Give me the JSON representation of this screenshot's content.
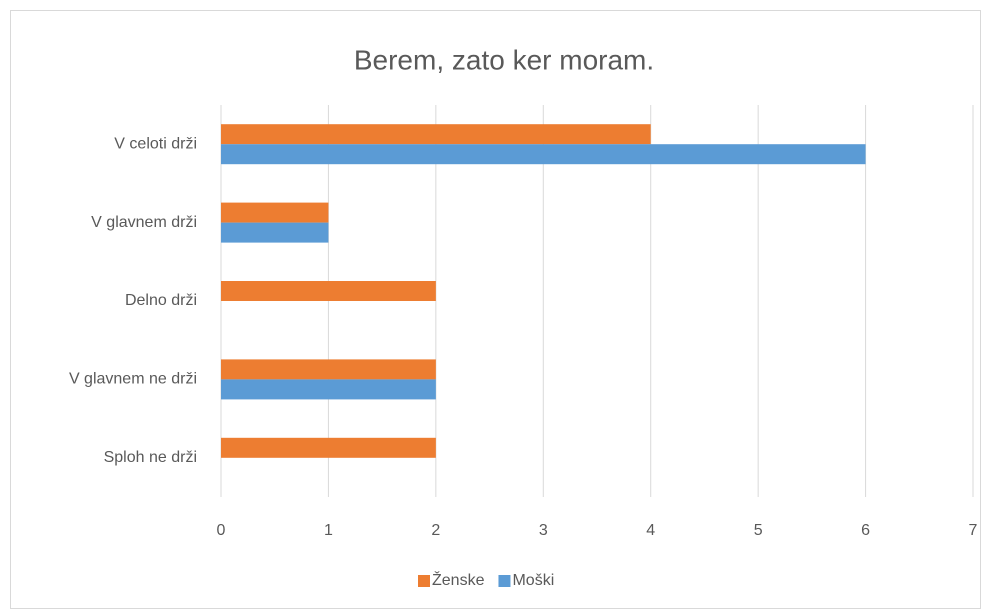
{
  "chart_data": {
    "type": "bar",
    "orientation": "horizontal",
    "title": "Berem, zato ker moram.",
    "categories": [
      "V celoti drži",
      "V glavnem drži",
      "Delno drži",
      "V glavnem ne drži",
      "Sploh ne drži"
    ],
    "series": [
      {
        "name": "Ženske",
        "color": "#ed7d31",
        "values": [
          4,
          1,
          2,
          2,
          2
        ]
      },
      {
        "name": "Moški",
        "color": "#5b9bd5",
        "values": [
          6,
          1,
          0,
          2,
          0
        ]
      }
    ],
    "xlim": [
      0,
      7
    ],
    "xticks": [
      0,
      1,
      2,
      3,
      4,
      5,
      6,
      7
    ],
    "grid": true,
    "legend": "bottom"
  }
}
